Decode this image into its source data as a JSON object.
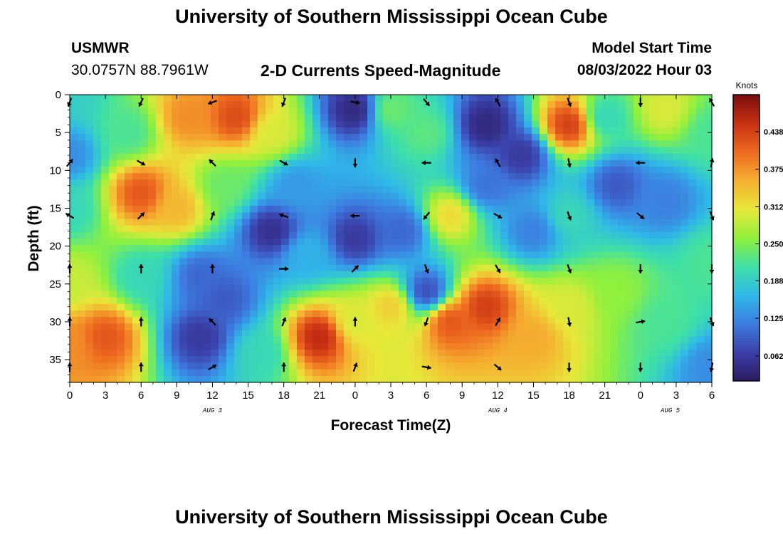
{
  "page": {
    "title": "University of Southern Mississippi Ocean Cube",
    "title_repeat": "University of Southern Mississippi Ocean Cube"
  },
  "header": {
    "station_id": "USMWR",
    "coordinates": "30.0757N  88.7961W",
    "product": "2-D Currents Speed-Magnitude",
    "model_label": "Model Start Time",
    "model_time": "08/03/2022 Hour 03"
  },
  "chart_data": {
    "type": "heatmap",
    "title": "2-D Currents Speed-Magnitude",
    "xlabel": "Forecast Time(Z)",
    "ylabel": "Depth (ft)",
    "x_ticks": [
      "0",
      "3",
      "6",
      "9",
      "12",
      "15",
      "18",
      "21",
      "0",
      "3",
      "6",
      "9",
      "12",
      "15",
      "18",
      "21",
      "0",
      "3",
      "6"
    ],
    "x_range_hours": [
      0,
      54
    ],
    "y_ticks": [
      0,
      5,
      10,
      15,
      20,
      25,
      30,
      35
    ],
    "ylim": [
      0,
      38
    ],
    "day_labels": [
      {
        "text": "AUG 3",
        "hour": 12
      },
      {
        "text": "AUG 4",
        "hour": 36
      },
      {
        "text": "AUG 5",
        "hour": 50.5
      }
    ],
    "colorbar": {
      "label": "Knots",
      "range": [
        0.02,
        0.5
      ],
      "ticks": [
        "0.062",
        "0.125",
        "0.188",
        "0.250",
        "0.312",
        "0.375",
        "0.438"
      ],
      "tick_values": [
        0.062,
        0.125,
        0.188,
        0.25,
        0.312,
        0.375,
        0.438
      ],
      "colors": [
        "#2a1a5e",
        "#3b3fa8",
        "#3d7be0",
        "#2fb8e8",
        "#3ee0a8",
        "#8ff03d",
        "#e8e83a",
        "#f5b030",
        "#ee6a20",
        "#c83012",
        "#7a0f0f"
      ]
    },
    "speed_field_knots": [
      {
        "hour": 0,
        "depth": 0,
        "value": 0.19
      },
      {
        "hour": 0,
        "depth": 8,
        "value": 0.13
      },
      {
        "hour": 0,
        "depth": 15,
        "value": 0.2
      },
      {
        "hour": 0,
        "depth": 25,
        "value": 0.29
      },
      {
        "hour": 0,
        "depth": 33,
        "value": 0.38
      },
      {
        "hour": 5,
        "depth": 5,
        "value": 0.22
      },
      {
        "hour": 6,
        "depth": 13,
        "value": 0.42
      },
      {
        "hour": 6,
        "depth": 24,
        "value": 0.2
      },
      {
        "hour": 3,
        "depth": 32,
        "value": 0.42
      },
      {
        "hour": 10,
        "depth": 3,
        "value": 0.38
      },
      {
        "hour": 9,
        "depth": 15,
        "value": 0.35
      },
      {
        "hour": 11,
        "depth": 24,
        "value": 0.1
      },
      {
        "hour": 11,
        "depth": 32,
        "value": 0.06
      },
      {
        "hour": 14,
        "depth": 3,
        "value": 0.43
      },
      {
        "hour": 13,
        "depth": 12,
        "value": 0.24
      },
      {
        "hour": 13,
        "depth": 27,
        "value": 0.09
      },
      {
        "hour": 17,
        "depth": 18,
        "value": 0.05
      },
      {
        "hour": 16,
        "depth": 34,
        "value": 0.2
      },
      {
        "hour": 17,
        "depth": 5,
        "value": 0.3
      },
      {
        "hour": 21,
        "depth": 32,
        "value": 0.46
      },
      {
        "hour": 20,
        "depth": 21,
        "value": 0.16
      },
      {
        "hour": 19,
        "depth": 12,
        "value": 0.14
      },
      {
        "hour": 24,
        "depth": 2,
        "value": 0.04
      },
      {
        "hour": 24,
        "depth": 19,
        "value": 0.06
      },
      {
        "hour": 24,
        "depth": 30,
        "value": 0.3
      },
      {
        "hour": 27,
        "depth": 2,
        "value": 0.24
      },
      {
        "hour": 27,
        "depth": 28,
        "value": 0.33
      },
      {
        "hour": 28,
        "depth": 18,
        "value": 0.1
      },
      {
        "hour": 30,
        "depth": 26,
        "value": 0.08
      },
      {
        "hour": 30,
        "depth": 5,
        "value": 0.23
      },
      {
        "hour": 32,
        "depth": 16,
        "value": 0.32
      },
      {
        "hour": 32,
        "depth": 30,
        "value": 0.42
      },
      {
        "hour": 35,
        "depth": 4,
        "value": 0.04
      },
      {
        "hour": 35,
        "depth": 12,
        "value": 0.11
      },
      {
        "hour": 35,
        "depth": 28,
        "value": 0.44
      },
      {
        "hour": 38,
        "depth": 8,
        "value": 0.06
      },
      {
        "hour": 39,
        "depth": 32,
        "value": 0.36
      },
      {
        "hour": 39,
        "depth": 18,
        "value": 0.12
      },
      {
        "hour": 42,
        "depth": 4,
        "value": 0.44
      },
      {
        "hour": 42,
        "depth": 16,
        "value": 0.2
      },
      {
        "hour": 42,
        "depth": 28,
        "value": 0.3
      },
      {
        "hour": 45,
        "depth": 3,
        "value": 0.2
      },
      {
        "hour": 46,
        "depth": 12,
        "value": 0.09
      },
      {
        "hour": 46,
        "depth": 26,
        "value": 0.26
      },
      {
        "hour": 50,
        "depth": 2,
        "value": 0.3
      },
      {
        "hour": 50,
        "depth": 14,
        "value": 0.12
      },
      {
        "hour": 50,
        "depth": 30,
        "value": 0.22
      },
      {
        "hour": 54,
        "depth": 5,
        "value": 0.22
      },
      {
        "hour": 54,
        "depth": 22,
        "value": 0.22
      },
      {
        "hour": 54,
        "depth": 36,
        "value": 0.13
      }
    ],
    "current_vectors": {
      "hours": [
        0,
        6,
        12,
        18,
        24,
        30,
        36,
        42,
        48,
        54
      ],
      "depths": [
        1,
        9,
        16,
        23,
        30,
        36
      ],
      "directions_deg": [
        [
          200,
          205,
          250,
          200,
          100,
          140,
          330,
          160,
          180,
          330
        ],
        [
          40,
          120,
          315,
          120,
          180,
          270,
          330,
          170,
          270,
          10
        ],
        [
          300,
          45,
          20,
          290,
          270,
          220,
          120,
          160,
          130,
          160
        ],
        [
          0,
          0,
          0,
          90,
          45,
          160,
          150,
          160,
          180,
          180
        ],
        [
          0,
          0,
          315,
          20,
          0,
          200,
          30,
          170,
          80,
          160
        ],
        [
          0,
          0,
          60,
          0,
          20,
          100,
          130,
          180,
          180,
          190
        ]
      ]
    }
  }
}
